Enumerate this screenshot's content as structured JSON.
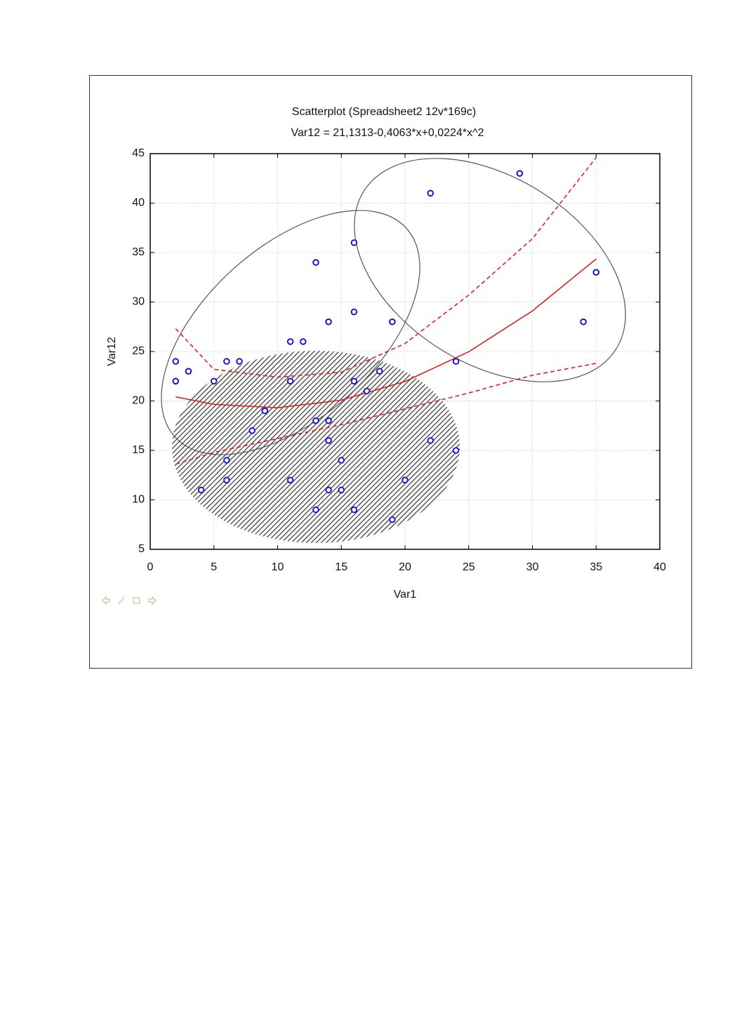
{
  "chart_data": {
    "type": "scatter",
    "title": "Scatterplot (Spreadsheet2 12v*169c)",
    "subtitle": "Var12 = 21,1313-0,4063*x+0,0224*x^2",
    "xlabel": "Var1",
    "ylabel": "Var12",
    "x": [
      2,
      2,
      3,
      5,
      6,
      7,
      4,
      6,
      6,
      8,
      9,
      11,
      12,
      11,
      11,
      13,
      14,
      13,
      14,
      14,
      13,
      14,
      15,
      15,
      16,
      16,
      16,
      16,
      17,
      18,
      19,
      19,
      20,
      22,
      22,
      24,
      24,
      29,
      34,
      35
    ],
    "values": [
      24,
      22,
      23,
      22,
      24,
      24,
      11,
      14,
      12,
      17,
      19,
      26,
      26,
      22,
      12,
      34,
      28,
      18,
      18,
      16,
      9,
      11,
      14,
      11,
      36,
      29,
      22,
      9,
      21,
      23,
      28,
      8,
      12,
      41,
      16,
      24,
      15,
      43,
      28,
      33
    ],
    "color": "#1a1acc",
    "curves": [
      {
        "x": [
          2,
          5,
          10,
          15,
          20,
          25,
          30,
          35
        ],
        "values": [
          20.41,
          19.66,
          19.31,
          20.08,
          21.97,
          24.97,
          29.1,
          34.35
        ],
        "color": "#e02020",
        "style": "solid"
      },
      {
        "x": [
          2,
          5,
          10,
          15,
          20,
          25,
          30,
          35
        ],
        "values": [
          27.3,
          23.2,
          22.4,
          22.9,
          25.8,
          30.7,
          36.4,
          44.6
        ],
        "color": "#e02020",
        "style": "dashed"
      },
      {
        "x": [
          2,
          5,
          10,
          15,
          20,
          25,
          30,
          35
        ],
        "values": [
          13.6,
          14.8,
          16.2,
          17.6,
          19.2,
          20.8,
          22.6,
          23.8
        ],
        "color": "#e02020",
        "style": "dashed"
      }
    ],
    "xlim": [
      0,
      40
    ],
    "xticks": [
      0,
      5,
      10,
      15,
      20,
      25,
      30,
      35,
      40
    ],
    "ylim": [
      5,
      45
    ],
    "yticks": [
      5,
      10,
      15,
      20,
      25,
      30,
      35,
      40,
      45
    ],
    "grid": true
  }
}
